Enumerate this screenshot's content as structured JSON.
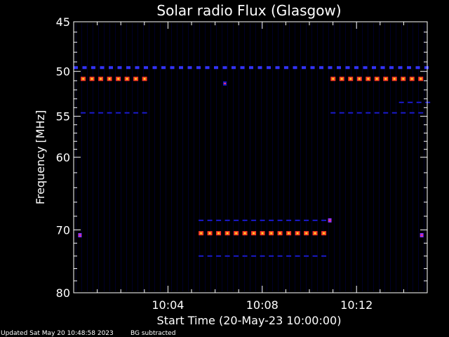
{
  "footer": {
    "updated": "Updated Sat May 20 10:48:58 2023",
    "note": "BG subtracted"
  },
  "chart_data": {
    "type": "heatmap",
    "title": "Solar radio Flux (Glasgow)",
    "xlabel": "Start Time (20-May-23 10:00:00)",
    "ylabel": "Frequency [MHz]",
    "xlim_minutes": [
      0,
      15
    ],
    "ylim": [
      45,
      80
    ],
    "y_scale": "log",
    "x_ticks": [
      {
        "minute": 4,
        "label": "10:04"
      },
      {
        "minute": 8,
        "label": "10:08"
      },
      {
        "minute": 12,
        "label": "10:12"
      }
    ],
    "y_ticks": [
      {
        "value": 45,
        "label": "45"
      },
      {
        "value": 50,
        "label": "50"
      },
      {
        "value": 55,
        "label": "55"
      },
      {
        "value": 60,
        "label": "60"
      },
      {
        "value": 70,
        "label": "70"
      },
      {
        "value": 80,
        "label": "80"
      }
    ],
    "colors": {
      "background": "#000000",
      "frame": "#ffffff",
      "low": "#000033",
      "weak": "#1a1acc",
      "moderate": "#3333ff",
      "strong_core": "#ff8000",
      "strong_edge": "#ff3030",
      "peak": "#ffd060"
    },
    "bands": [
      {
        "freq": 49.6,
        "start_min": 0.0,
        "end_min": 15.0,
        "intensity": "moderate"
      },
      {
        "freq": 50.8,
        "start_min": 0.3,
        "end_min": 3.0,
        "intensity": "strong"
      },
      {
        "freq": 50.8,
        "start_min": 10.9,
        "end_min": 15.0,
        "intensity": "strong"
      },
      {
        "freq": 54.6,
        "start_min": 0.3,
        "end_min": 3.0,
        "intensity": "weak"
      },
      {
        "freq": 54.6,
        "start_min": 10.9,
        "end_min": 15.0,
        "intensity": "weak"
      },
      {
        "freq": 53.4,
        "start_min": 13.8,
        "end_min": 15.0,
        "intensity": "weak"
      },
      {
        "freq": 68.6,
        "start_min": 5.3,
        "end_min": 10.9,
        "intensity": "weak"
      },
      {
        "freq": 70.5,
        "start_min": 5.3,
        "end_min": 10.9,
        "intensity": "strong"
      },
      {
        "freq": 74.0,
        "start_min": 5.3,
        "end_min": 10.9,
        "intensity": "weak"
      }
    ],
    "spots": [
      {
        "freq": 70.8,
        "minute": 0.25,
        "intensity": "moderate"
      },
      {
        "freq": 70.8,
        "minute": 14.75,
        "intensity": "moderate"
      },
      {
        "freq": 68.6,
        "minute": 10.85,
        "intensity": "moderate"
      },
      {
        "freq": 51.3,
        "minute": 6.4,
        "intensity": "weak"
      }
    ]
  }
}
